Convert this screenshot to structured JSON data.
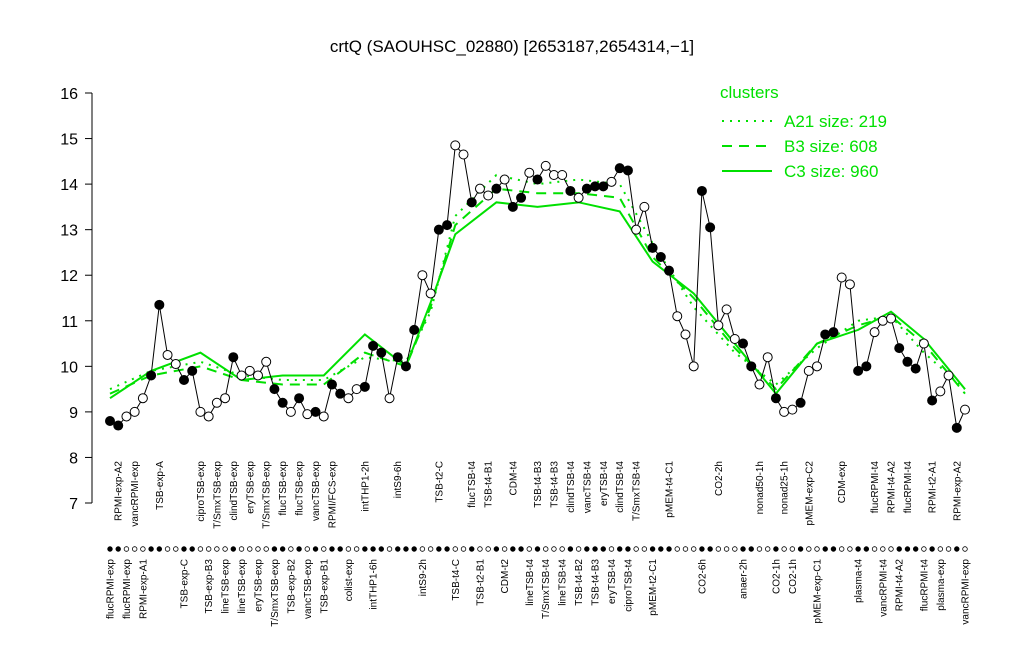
{
  "chart_data": {
    "type": "line",
    "title": "crtQ (SAOUHSC_02880) [2653187,2654314,−1]",
    "categories": [
      "flucRPMI-exp",
      "RPMI-exp-A2",
      "flucRPMI-exp",
      "vancRPMI-exp",
      "RPMI-exp-A1",
      null,
      "TSB-exp-A",
      null,
      null,
      "TSB-exp-C",
      null,
      "ciproTSB-exp",
      "TSB-exp-B3",
      "T/SmxTSB-exp",
      "lineTSB-exp",
      "clindTSB-exp",
      "lineTSB-exp",
      "eryTSB-exp",
      "eryTSB-exp",
      "T/SmxTSB-exp",
      "T/SmxTSB-exp",
      "flucTSB-exp",
      "TSB-exp-B2",
      "flucTSB-exp",
      "vancTSB-exp",
      "vancTSB-exp",
      "TSB-exp-B1",
      "RPMI/FCS-exp",
      null,
      "colist-exp",
      null,
      "intTHP1-2h",
      "intTHP1-6h",
      null,
      null,
      "intS9-6h",
      null,
      null,
      "intS9-2h",
      null,
      "TSB-t2-C",
      null,
      "TSB-t4-C",
      null,
      "flucTSB-t4",
      "TSB-t2-B1",
      "TSB-t4-B1",
      null,
      "CDM-t2",
      "CDM-t4",
      null,
      "lineTSB-t4",
      "TSB-t4-B3",
      "T/SmxTSB-t4",
      "TSB-t4-B3",
      "lineTSB-t4",
      "clindTSB-t4",
      "TSB-t4-B2",
      "vancTSB-t4",
      "TSB-t4-B3",
      "eryTSB-t4",
      "eryTSB-t4",
      "clindTSB-t4",
      "ciproTSB-t4",
      "T/SmxTSB-t4",
      null,
      "pMEM-t2-C1",
      null,
      "pMEM-t4-C1",
      null,
      null,
      null,
      "CO2-6h",
      null,
      "CO2-2h",
      null,
      null,
      "anaer-2h",
      null,
      "nonad50-1h",
      null,
      "CO2-1h",
      "nonad25-1h",
      "CO2-1h",
      null,
      "pMEM-exp-C2",
      "pMEM-exp-C1",
      null,
      null,
      "CDM-exp",
      null,
      "plasma-t4",
      null,
      "flucRPMI-t4",
      "vancRPMI-t4",
      "RPMI-t4-A2",
      "RPMI-t4-A2",
      "flucRPMI-t4",
      null,
      "flucRPMI-t4",
      "RPMI-t2-A1",
      "plasma-exp",
      null,
      "RPMI-exp-A2",
      "vancRPMI-exp"
    ],
    "values": [
      8.8,
      8.7,
      8.9,
      9.0,
      9.3,
      9.8,
      11.35,
      10.25,
      10.05,
      9.7,
      9.9,
      9.0,
      8.9,
      9.2,
      9.3,
      10.2,
      9.8,
      9.9,
      9.8,
      10.1,
      9.5,
      9.2,
      9.0,
      9.3,
      8.95,
      9.0,
      8.9,
      9.6,
      9.4,
      9.3,
      9.5,
      9.55,
      10.45,
      10.3,
      9.3,
      10.2,
      10.0,
      10.8,
      12.0,
      11.6,
      13.0,
      13.1,
      14.85,
      14.65,
      13.6,
      13.9,
      13.75,
      13.9,
      14.1,
      13.5,
      13.7,
      14.25,
      14.1,
      14.4,
      14.2,
      14.2,
      13.85,
      13.7,
      13.9,
      13.95,
      13.95,
      14.05,
      14.35,
      14.3,
      13.0,
      13.5,
      12.6,
      12.4,
      12.1,
      11.1,
      10.7,
      10.0,
      13.85,
      13.05,
      10.9,
      11.25,
      10.6,
      10.5,
      10.0,
      9.6,
      10.2,
      9.3,
      9.0,
      9.05,
      9.2,
      9.9,
      10.0,
      10.7,
      10.75,
      11.95,
      11.8,
      9.9,
      10.0,
      10.75,
      11.0,
      11.05,
      10.4,
      10.1,
      9.95,
      10.5,
      9.25,
      9.45,
      9.8,
      8.65,
      9.05
    ],
    "filled": [
      true,
      true,
      false,
      false,
      false,
      true,
      true,
      false,
      false,
      true,
      true,
      false,
      false,
      false,
      false,
      true,
      false,
      false,
      false,
      false,
      true,
      true,
      false,
      true,
      false,
      true,
      false,
      true,
      true,
      false,
      false,
      true,
      true,
      true,
      false,
      true,
      true,
      true,
      false,
      false,
      true,
      true,
      false,
      false,
      true,
      false,
      false,
      true,
      false,
      true,
      true,
      false,
      true,
      false,
      false,
      false,
      true,
      false,
      true,
      true,
      true,
      false,
      true,
      true,
      false,
      false,
      true,
      true,
      true,
      false,
      false,
      false,
      true,
      true,
      false,
      false,
      false,
      true,
      true,
      false,
      false,
      true,
      false,
      false,
      true,
      false,
      false,
      true,
      true,
      false,
      false,
      true,
      true,
      false,
      false,
      false,
      true,
      true,
      true,
      false,
      true,
      false,
      false,
      true,
      false
    ],
    "ylim": [
      7,
      16
    ],
    "yticks": [
      7,
      8,
      9,
      10,
      11,
      12,
      13,
      14,
      15,
      16
    ],
    "legend_title": "clusters",
    "clusters": {
      "x": [
        1,
        6,
        12,
        17,
        22,
        27,
        32,
        37,
        40,
        43,
        48,
        53,
        58,
        63,
        67,
        72,
        77,
        82,
        87,
        92,
        96,
        100,
        105
      ],
      "series": [
        {
          "name": "A21 size: 219",
          "style": "dotted",
          "color": "#00e000",
          "values": [
            9.5,
            9.9,
            10.1,
            9.8,
            9.7,
            9.7,
            10.2,
            10.1,
            11.2,
            13.3,
            14.2,
            14.0,
            14.1,
            14.0,
            12.7,
            11.3,
            10.3,
            9.6,
            10.4,
            11.0,
            11.1,
            10.3,
            9.5
          ]
        },
        {
          "name": "B3 size: 608",
          "style": "dashed",
          "color": "#00e000",
          "values": [
            9.4,
            9.8,
            10.0,
            9.7,
            9.6,
            9.6,
            10.3,
            10.0,
            11.3,
            13.1,
            13.9,
            13.8,
            13.8,
            13.7,
            12.4,
            11.5,
            10.4,
            9.5,
            10.5,
            10.9,
            11.1,
            10.5,
            9.4
          ]
        },
        {
          "name": "C3 size: 960",
          "style": "solid",
          "color": "#00e000",
          "values": [
            9.3,
            9.9,
            10.3,
            9.7,
            9.8,
            9.8,
            10.7,
            10.0,
            11.4,
            12.9,
            13.6,
            13.5,
            13.6,
            13.4,
            12.3,
            11.6,
            10.5,
            9.4,
            10.5,
            10.8,
            11.2,
            10.6,
            9.5
          ]
        }
      ]
    }
  }
}
